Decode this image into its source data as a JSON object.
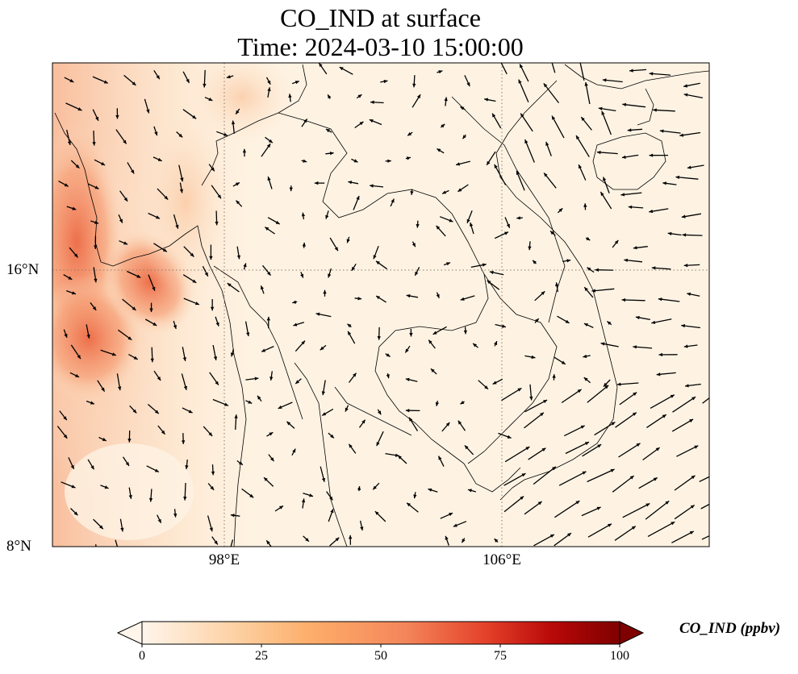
{
  "title_line1": "CO_IND at surface",
  "title_line2": "Time: 2024-03-10 15:00:00",
  "map": {
    "lat_range_deg": [
      8,
      21.5
    ],
    "lon_range_deg": [
      93.1,
      112
    ],
    "lat_ticks": [
      {
        "value": 16,
        "label": "16°N"
      },
      {
        "value": 8,
        "label": "8°N"
      }
    ],
    "lon_ticks": [
      {
        "value": 98,
        "label": "98°E"
      },
      {
        "value": 106,
        "label": "106°E"
      }
    ],
    "gridlines": "dotted",
    "colors": {
      "land_sea_background": "#fef3e3",
      "coastline": "#000000",
      "gridline": "#8a7a66",
      "wind_arrow": "#000000"
    }
  },
  "colorbar": {
    "label": "CO_IND (ppbv)",
    "min": 0,
    "max": 100,
    "extend": "both",
    "ticks": [
      {
        "value": 0,
        "label": "0"
      },
      {
        "value": 25,
        "label": "25"
      },
      {
        "value": 50,
        "label": "50"
      },
      {
        "value": 75,
        "label": "75"
      },
      {
        "value": 100,
        "label": "100"
      }
    ],
    "colormap": [
      "#fff5eb",
      "#fdd0a2",
      "#fdae6b",
      "#f16913",
      "#d94801",
      "#a60000",
      "#7f0000"
    ]
  }
}
